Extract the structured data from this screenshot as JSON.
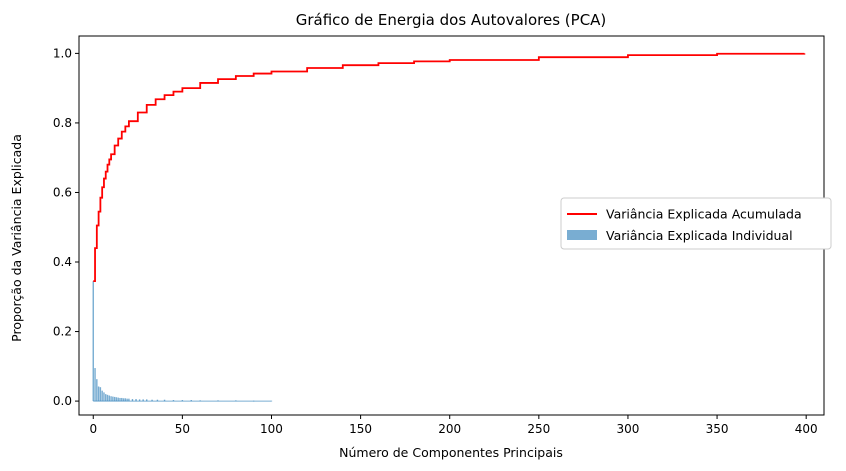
{
  "chart_data": {
    "type": "bar",
    "title": "Gráfico de Energia dos Autovalores (PCA)",
    "xlabel": "Número de Componentes Principais",
    "ylabel": "Proporção da Variância Explicada",
    "xlim": [
      -8,
      410
    ],
    "ylim": [
      -0.04,
      1.05
    ],
    "xticks": [
      0,
      50,
      100,
      150,
      200,
      250,
      300,
      350,
      400
    ],
    "yticks": [
      0.0,
      0.2,
      0.4,
      0.6,
      0.8,
      1.0
    ],
    "legend_position": "center-right",
    "grid": false,
    "series": [
      {
        "name": "Variância Explicada Acumulada",
        "kind": "step-line",
        "color": "#ff0000",
        "x": [
          0,
          1,
          2,
          3,
          4,
          5,
          6,
          7,
          8,
          9,
          10,
          12,
          14,
          16,
          18,
          20,
          25,
          30,
          35,
          40,
          45,
          50,
          60,
          70,
          80,
          90,
          100,
          120,
          140,
          160,
          180,
          200,
          250,
          300,
          350,
          399
        ],
        "values": [
          0.345,
          0.44,
          0.505,
          0.545,
          0.585,
          0.615,
          0.64,
          0.66,
          0.68,
          0.695,
          0.71,
          0.735,
          0.755,
          0.775,
          0.79,
          0.805,
          0.83,
          0.852,
          0.868,
          0.88,
          0.89,
          0.9,
          0.915,
          0.926,
          0.935,
          0.942,
          0.948,
          0.958,
          0.966,
          0.972,
          0.977,
          0.981,
          0.989,
          0.995,
          0.999,
          1.0
        ]
      },
      {
        "name": "Variância Explicada Individual",
        "kind": "bar",
        "color": "#1f77b4",
        "opacity": 0.6,
        "x": [
          0,
          1,
          2,
          3,
          4,
          5,
          6,
          7,
          8,
          9,
          10,
          11,
          12,
          13,
          14,
          15,
          16,
          17,
          18,
          19,
          20,
          22,
          24,
          26,
          28,
          30,
          33,
          36,
          40,
          45,
          50,
          55,
          60,
          70,
          80,
          90,
          100
        ],
        "values": [
          0.345,
          0.095,
          0.063,
          0.042,
          0.04,
          0.03,
          0.025,
          0.02,
          0.018,
          0.016,
          0.014,
          0.013,
          0.012,
          0.011,
          0.01,
          0.009,
          0.009,
          0.008,
          0.008,
          0.007,
          0.007,
          0.006,
          0.006,
          0.005,
          0.005,
          0.005,
          0.004,
          0.004,
          0.004,
          0.003,
          0.003,
          0.003,
          0.002,
          0.002,
          0.002,
          0.001,
          0.001
        ]
      }
    ]
  }
}
